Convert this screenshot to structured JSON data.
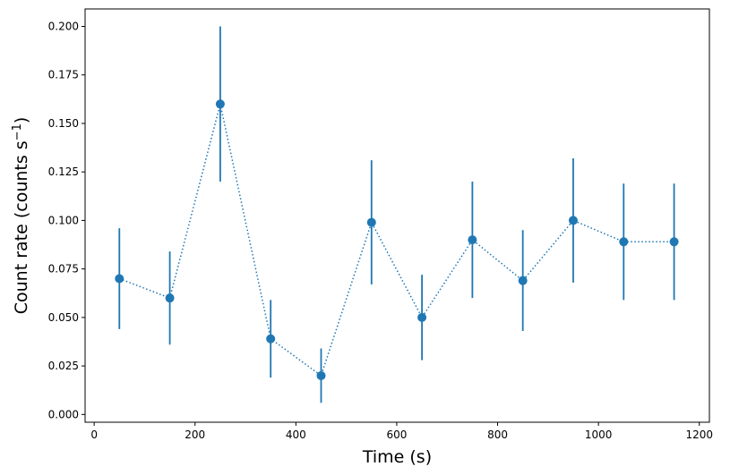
{
  "chart_data": {
    "type": "line",
    "title": "",
    "xlabel": "Time (s)",
    "ylabel_main": "Count rate (counts s",
    "ylabel_sup": "−1",
    "ylabel_close": ")",
    "xlim": [
      -18,
      1220
    ],
    "ylim": [
      -0.004,
      0.209
    ],
    "xticks": [
      0,
      200,
      400,
      600,
      800,
      1000,
      1200
    ],
    "xtick_labels": [
      "0",
      "200",
      "400",
      "600",
      "800",
      "1000",
      "1200"
    ],
    "yticks": [
      0.0,
      0.025,
      0.05,
      0.075,
      0.1,
      0.125,
      0.15,
      0.175,
      0.2
    ],
    "ytick_labels": [
      "0.000",
      "0.025",
      "0.050",
      "0.075",
      "0.100",
      "0.125",
      "0.150",
      "0.175",
      "0.200"
    ],
    "grid": false,
    "color": "#1f77b4",
    "linestyle": "dotted",
    "marker": "circle",
    "series": [
      {
        "x": [
          50,
          150,
          250,
          350,
          450,
          550,
          650,
          750,
          850,
          950,
          1050,
          1150
        ],
        "y": [
          0.07,
          0.06,
          0.16,
          0.039,
          0.02,
          0.099,
          0.05,
          0.09,
          0.069,
          0.1,
          0.089,
          0.089
        ],
        "yerr": [
          0.026,
          0.024,
          0.04,
          0.02,
          0.014,
          0.032,
          0.022,
          0.03,
          0.026,
          0.032,
          0.03,
          0.03
        ]
      }
    ]
  }
}
